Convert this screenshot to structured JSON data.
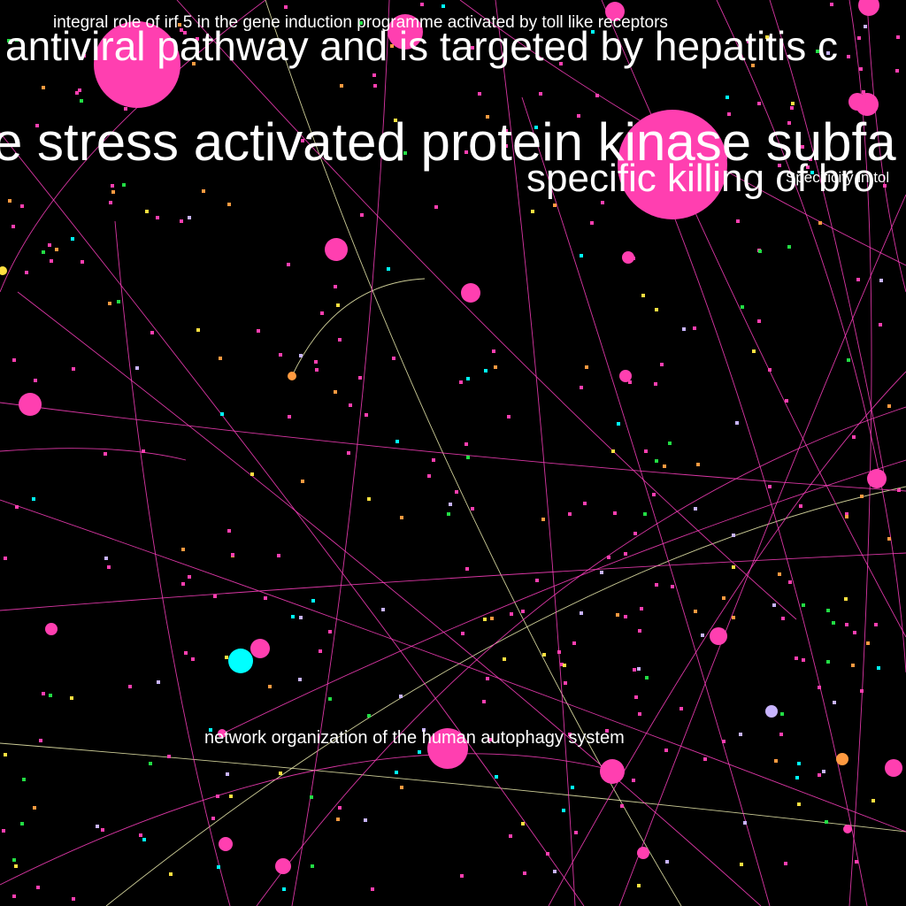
{
  "colors": {
    "background": "#000000",
    "text": "#ffffff",
    "edge_pink": "#ff3fbf",
    "edge_pale": "#f0f0b0",
    "node_pink": "#ff3fb0",
    "node_cyan": "#00ffff",
    "node_lavender": "#c8b4ff",
    "node_orange": "#ff9a40",
    "node_yellow": "#ffe040",
    "node_green": "#22dd44"
  },
  "labels": {
    "irf5": "integral role of irf 5 in the gene induction programme activated by toll like receptors",
    "antiviral": "antiviral pathway and is targeted by hepatitis c",
    "stress_kinase": "e stress activated protein kinase subfa",
    "specific_killing": "specific killing of bro",
    "specificity": "Specificity in tol",
    "autophagy": "network organization of the human autophagy system"
  }
}
